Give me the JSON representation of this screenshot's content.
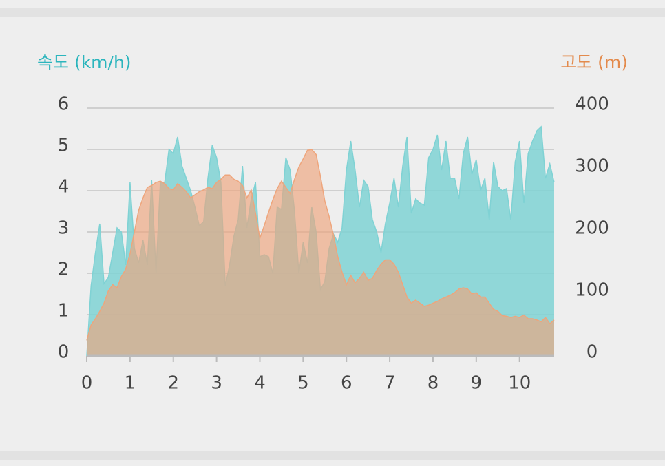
{
  "chart_data": {
    "type": "area",
    "y_label": "속도 (km/h)",
    "y2_label": "고도 (m)",
    "x": [
      0,
      0.1,
      0.2,
      0.3,
      0.4,
      0.5,
      0.6,
      0.7,
      0.8,
      0.9,
      1,
      1.1,
      1.2,
      1.3,
      1.4,
      1.5,
      1.6,
      1.7,
      1.8,
      1.9,
      2,
      2.1,
      2.2,
      2.3,
      2.4,
      2.5,
      2.6,
      2.7,
      2.8,
      2.9,
      3,
      3.1,
      3.2,
      3.3,
      3.4,
      3.5,
      3.6,
      3.7,
      3.8,
      3.9,
      4,
      4.1,
      4.2,
      4.3,
      4.4,
      4.5,
      4.6,
      4.7,
      4.8,
      4.9,
      5,
      5.1,
      5.2,
      5.3,
      5.4,
      5.5,
      5.6,
      5.7,
      5.8,
      5.9,
      6,
      6.1,
      6.2,
      6.3,
      6.4,
      6.5,
      6.6,
      6.7,
      6.8,
      6.9,
      7,
      7.1,
      7.2,
      7.3,
      7.4,
      7.5,
      7.6,
      7.7,
      7.8,
      7.9,
      8,
      8.1,
      8.2,
      8.3,
      8.4,
      8.5,
      8.6,
      8.7,
      8.8,
      8.9,
      9,
      9.1,
      9.2,
      9.3,
      9.4,
      9.5,
      9.6,
      9.7,
      9.8,
      9.9,
      10,
      10.1,
      10.2,
      10.3,
      10.4,
      10.5,
      10.6,
      10.7,
      10.8
    ],
    "series": [
      {
        "name": "속도",
        "color": "#7fd2d4",
        "axis": "y",
        "values": [
          0,
          1.7,
          2.5,
          3.2,
          1.75,
          1.9,
          2.5,
          3.1,
          3.0,
          2.2,
          4.2,
          2.6,
          2.25,
          2.8,
          2.2,
          4.25,
          2.0,
          4.2,
          4.2,
          5.0,
          4.9,
          5.3,
          4.6,
          4.3,
          4.0,
          3.6,
          3.15,
          3.25,
          4.3,
          5.1,
          4.8,
          4.2,
          1.7,
          2.2,
          2.9,
          3.3,
          4.6,
          3.1,
          3.8,
          4.2,
          2.4,
          2.45,
          2.4,
          2.0,
          3.6,
          3.55,
          4.8,
          4.5,
          3.5,
          2.0,
          2.75,
          2.25,
          3.6,
          3.0,
          1.6,
          1.8,
          2.6,
          2.95,
          2.75,
          3.1,
          4.5,
          5.2,
          4.5,
          3.6,
          4.25,
          4.1,
          3.3,
          3.0,
          2.5,
          3.2,
          3.7,
          4.3,
          3.6,
          4.6,
          5.3,
          3.45,
          3.8,
          3.7,
          3.65,
          4.8,
          5.0,
          5.35,
          4.5,
          5.2,
          4.3,
          4.3,
          3.8,
          4.9,
          5.3,
          4.4,
          4.75,
          4.0,
          4.3,
          3.3,
          4.7,
          4.1,
          4.0,
          4.05,
          3.3,
          4.7,
          5.2,
          3.7,
          4.9,
          5.2,
          5.45,
          5.55,
          4.3,
          4.65,
          4.2
        ]
      },
      {
        "name": "고도",
        "color": "#eea57c",
        "axis": "y2",
        "values": [
          25,
          50,
          60,
          72,
          85,
          105,
          115,
          110,
          128,
          140,
          165,
          200,
          235,
          255,
          272,
          275,
          280,
          282,
          278,
          270,
          268,
          278,
          272,
          265,
          255,
          260,
          265,
          268,
          272,
          270,
          280,
          285,
          292,
          292,
          285,
          282,
          275,
          255,
          268,
          230,
          190,
          210,
          232,
          252,
          270,
          282,
          272,
          262,
          285,
          305,
          318,
          332,
          333,
          325,
          290,
          250,
          225,
          195,
          160,
          135,
          115,
          130,
          118,
          125,
          135,
          122,
          125,
          138,
          148,
          155,
          155,
          148,
          135,
          115,
          95,
          85,
          90,
          85,
          80,
          82,
          85,
          88,
          92,
          95,
          98,
          102,
          108,
          110,
          108,
          100,
          102,
          95,
          95,
          85,
          75,
          72,
          65,
          64,
          62,
          64,
          62,
          66,
          60,
          60,
          58,
          55,
          62,
          52,
          58
        ]
      }
    ],
    "xlim": [
      0,
      10.8
    ],
    "xticks": [
      0,
      1,
      2,
      3,
      4,
      5,
      6,
      7,
      8,
      9,
      10
    ],
    "ylim": [
      0,
      6
    ],
    "yticks": [
      0,
      1,
      2,
      3,
      4,
      5,
      6
    ],
    "y2lim": [
      0,
      400
    ],
    "y2ticks": [
      0,
      100,
      200,
      300,
      400
    ],
    "grid": true
  }
}
